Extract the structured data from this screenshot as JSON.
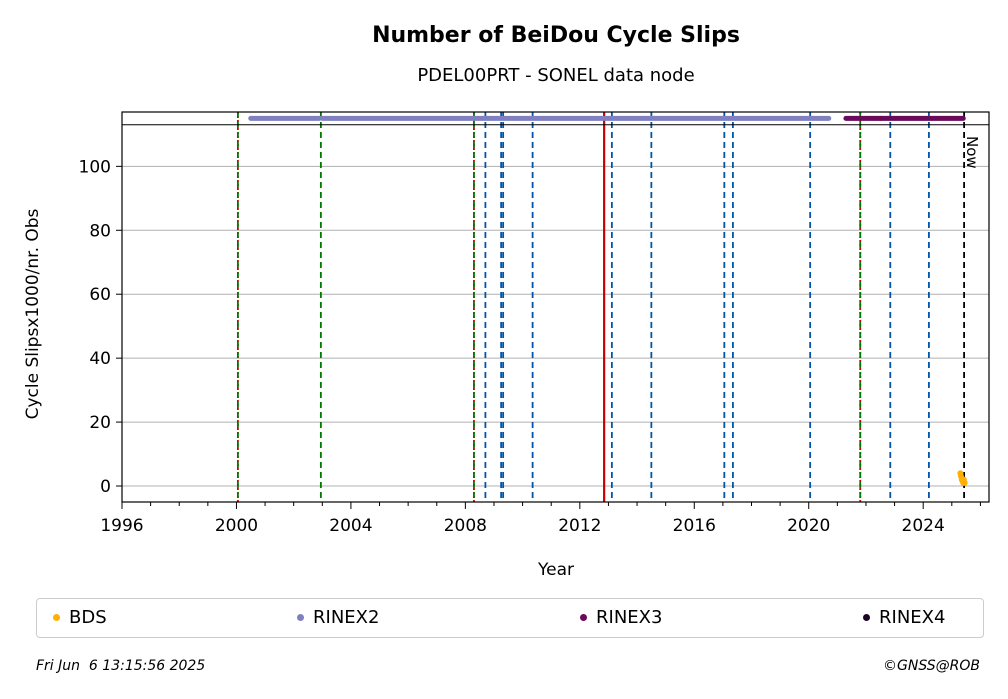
{
  "chart_data": {
    "type": "scatter",
    "title": "Number of BeiDou Cycle Slips",
    "subtitle": "PDEL00PRT - SONEL data node",
    "xlabel": "Year",
    "ylabel": "Cycle Slipsx1000/nr. Obs",
    "xlim": [
      1996,
      2026.3
    ],
    "ylim": [
      -5,
      117
    ],
    "x_ticks": [
      1996,
      2000,
      2004,
      2008,
      2012,
      2016,
      2020,
      2024
    ],
    "y_ticks": [
      0,
      20,
      40,
      60,
      80,
      100
    ],
    "grid_y": true,
    "now_label": "Now",
    "now_year": 2025.43,
    "availability_band": {
      "y_low": 113,
      "y_high": 117
    },
    "series": [
      {
        "name": "BDS",
        "color": "#ffb000",
        "points": [
          [
            2025.3,
            4
          ],
          [
            2025.32,
            3
          ],
          [
            2025.35,
            2
          ],
          [
            2025.38,
            1.5
          ],
          [
            2025.4,
            1
          ],
          [
            2025.42,
            2
          ],
          [
            2025.45,
            1
          ]
        ]
      },
      {
        "name": "RINEX2",
        "color": "#8080c0",
        "segments": [
          [
            2000.5,
            2002.9
          ],
          [
            2003.0,
            2020.7
          ]
        ],
        "y": 115
      },
      {
        "name": "RINEX3",
        "color": "#6b0a5a",
        "segments": [
          [
            2021.3,
            2022.5
          ],
          [
            2022.5,
            2025.4
          ]
        ],
        "y": 115
      },
      {
        "name": "RINEX4",
        "color": "#1a0525",
        "segments": [],
        "y": 115
      }
    ],
    "event_lines": [
      {
        "x": 2000.05,
        "color": "#cc0000",
        "style": "dotted"
      },
      {
        "x": 2000.05,
        "color": "#007700",
        "style": "dashed"
      },
      {
        "x": 2002.95,
        "color": "#007700",
        "style": "dashed"
      },
      {
        "x": 2008.3,
        "color": "#cc0000",
        "style": "dotted"
      },
      {
        "x": 2008.3,
        "color": "#007700",
        "style": "dashed"
      },
      {
        "x": 2008.7,
        "color": "#0055aa",
        "style": "dashed"
      },
      {
        "x": 2009.25,
        "color": "#0055aa",
        "style": "dashed"
      },
      {
        "x": 2009.32,
        "color": "#0055aa",
        "style": "dashed"
      },
      {
        "x": 2010.35,
        "color": "#0055aa",
        "style": "dashed"
      },
      {
        "x": 2012.85,
        "color": "#cc0000",
        "style": "solid"
      },
      {
        "x": 2013.12,
        "color": "#0055aa",
        "style": "dashed"
      },
      {
        "x": 2014.5,
        "color": "#0055aa",
        "style": "dashed"
      },
      {
        "x": 2017.05,
        "color": "#0055aa",
        "style": "dashed"
      },
      {
        "x": 2017.35,
        "color": "#0055aa",
        "style": "dashed"
      },
      {
        "x": 2020.05,
        "color": "#0055aa",
        "style": "dashed"
      },
      {
        "x": 2021.8,
        "color": "#cc0000",
        "style": "dotted"
      },
      {
        "x": 2021.8,
        "color": "#007700",
        "style": "dashed"
      },
      {
        "x": 2022.85,
        "color": "#0055aa",
        "style": "dashed"
      },
      {
        "x": 2024.2,
        "color": "#0055aa",
        "style": "dashed"
      },
      {
        "x": 2025.43,
        "color": "#000000",
        "style": "dashed"
      }
    ]
  },
  "legend": {
    "items": [
      {
        "label": "BDS",
        "color": "#ffb000"
      },
      {
        "label": "RINEX2",
        "color": "#8080c0"
      },
      {
        "label": "RINEX3",
        "color": "#6b0a5a"
      },
      {
        "label": "RINEX4",
        "color": "#1a0525"
      }
    ]
  },
  "footer": {
    "timestamp": "Fri Jun  6 13:15:56 2025",
    "copyright": "©GNSS@ROB"
  }
}
